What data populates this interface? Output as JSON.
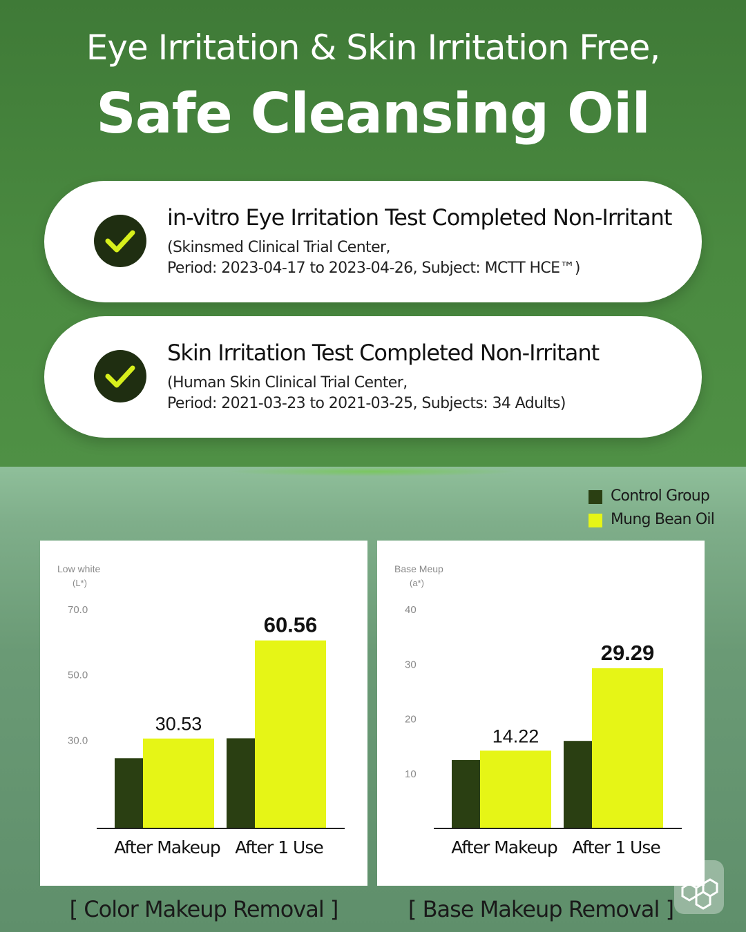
{
  "header": {
    "line1": "Eye Irritation & Skin Irritation Free,",
    "line2": "Safe Cleansing Oil"
  },
  "tests": [
    {
      "title": "in-vitro Eye Irritation Test Completed Non-Irritant",
      "detail_line1": "(Skinsmed Clinical Trial Center,",
      "detail_line2": "Period: 2023-04-17 to 2023-04-26, Subject: MCTT HCE™)"
    },
    {
      "title": "Skin Irritation Test Completed Non-Irritant",
      "detail_line1": "(Human Skin Clinical Trial Center,",
      "detail_line2": "Period: 2021-03-23 to 2021-03-25, Subjects: 34 Adults)"
    }
  ],
  "legend": [
    {
      "label": "Control Group",
      "color": "#2a3f12"
    },
    {
      "label": "Mung Bean Oil",
      "color": "#e6f516"
    }
  ],
  "chart_data": [
    {
      "type": "bar",
      "ylabel_line1": "Low white",
      "ylabel_line2": "(L*)",
      "yticks": [
        "70.0",
        "50.0",
        "30.0"
      ],
      "ytick_values": [
        70,
        50,
        30
      ],
      "ylim": [
        3,
        70
      ],
      "categories": [
        "After Makeup",
        "After 1 Use"
      ],
      "series": [
        {
          "name": "Control Group",
          "values": [
            24.5,
            30.6
          ]
        },
        {
          "name": "Mung Bean Oil",
          "values": [
            30.53,
            60.56
          ]
        }
      ],
      "data_labels": [
        "30.53",
        "60.56"
      ],
      "caption": "[ Color Makeup Removal ]"
    },
    {
      "type": "bar",
      "ylabel_line1": "Base Meup",
      "ylabel_line2": "(a*)",
      "yticks": [
        "40",
        "30",
        "20",
        "10"
      ],
      "ytick_values": [
        40,
        30,
        20,
        10
      ],
      "ylim": [
        0,
        40
      ],
      "categories": [
        "After Makeup",
        "After 1 Use"
      ],
      "series": [
        {
          "name": "Control Group",
          "values": [
            12.5,
            16.0
          ]
        },
        {
          "name": "Mung Bean Oil",
          "values": [
            14.22,
            29.29
          ]
        }
      ],
      "data_labels": [
        "14.22",
        "29.29"
      ],
      "caption": "[ Base Makeup Removal ]"
    }
  ]
}
